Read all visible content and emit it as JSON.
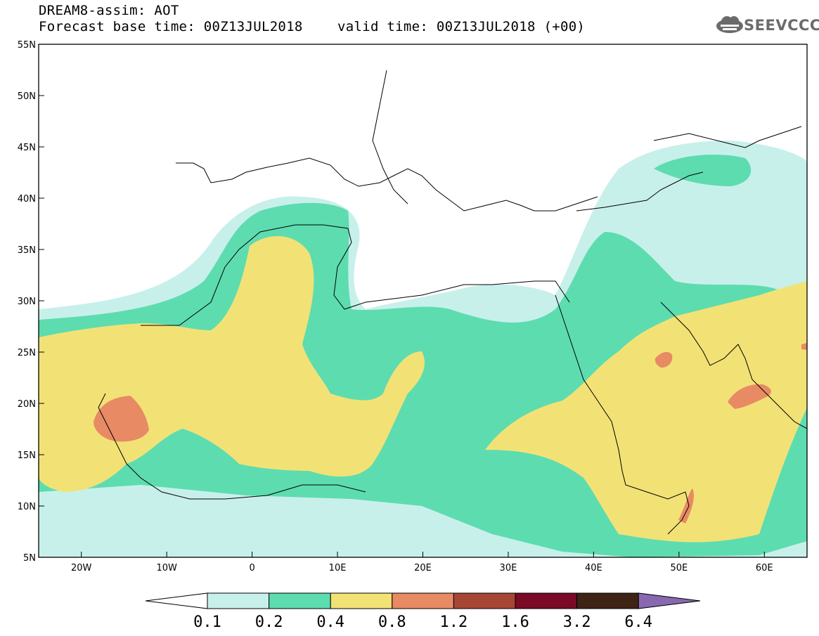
{
  "header": {
    "model_title": "DREAM8-assim: AOT",
    "base_time": "Forecast base time: 00Z13JUL2018",
    "valid_time": "valid time: 00Z13JUL2018 (+00)",
    "logo_text": "SEEVCCC"
  },
  "map": {
    "lat_labels": [
      "55N",
      "50N",
      "45N",
      "40N",
      "35N",
      "30N",
      "25N",
      "20N",
      "15N",
      "10N",
      "5N"
    ],
    "lon_labels": [
      "20W",
      "10W",
      "0",
      "10E",
      "20E",
      "30E",
      "40E",
      "50E",
      "60E"
    ],
    "extent": {
      "lon_min": -25,
      "lon_max": 65,
      "lat_min": 5,
      "lat_max": 55
    }
  },
  "colorbar": {
    "levels": [
      "0.1",
      "0.2",
      "0.4",
      "0.8",
      "1.2",
      "1.6",
      "3.2",
      "6.4"
    ],
    "colors": [
      "#c8f0ea",
      "#5ddcb0",
      "#f2e276",
      "#e88a64",
      "#a84636",
      "#7a0a26",
      "#3d2414",
      "#8868b0"
    ]
  },
  "colors": {
    "aot_0_1": "#c8f0ea",
    "aot_0_2": "#5ddcb0",
    "aot_0_4": "#f2e276",
    "aot_0_8": "#e88a64",
    "aot_1_2": "#a84636"
  }
}
